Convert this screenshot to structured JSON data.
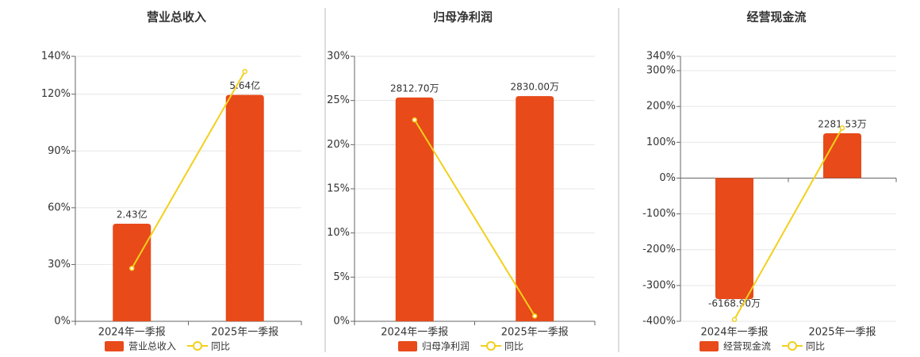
{
  "chart_data": [
    {
      "type": "bar-line",
      "title": "营业总收入",
      "categories": [
        "2024年一季报",
        "2025年一季报"
      ],
      "series": [
        {
          "name": "营业总收入",
          "color": "#e84a1a",
          "axis": "y2",
          "values": [
            2.43,
            5.64
          ],
          "value_labels": [
            "2.43亿",
            "5.64亿"
          ]
        },
        {
          "name": "同比",
          "color": "#f2d01c",
          "values": [
            28,
            132
          ]
        }
      ],
      "ylim": [
        0,
        140
      ],
      "yticks": [
        {
          "value": 0,
          "label": "0%"
        },
        {
          "value": 30,
          "label": "30%"
        },
        {
          "value": 60,
          "label": "60%"
        },
        {
          "value": 90,
          "label": "90%"
        },
        {
          "value": 120,
          "label": "120%"
        },
        {
          "value": 140,
          "label": "140%"
        }
      ],
      "y2lim": [
        0,
        6.6
      ],
      "grid": true
    },
    {
      "type": "bar-line",
      "title": "归母净利润",
      "categories": [
        "2024年一季报",
        "2025年一季报"
      ],
      "series": [
        {
          "name": "归母净利润",
          "color": "#e84a1a",
          "axis": "y2",
          "values": [
            2812.7,
            2830.0
          ],
          "value_labels": [
            "2812.70万",
            "2830.00万"
          ]
        },
        {
          "name": "同比",
          "color": "#f2d01c",
          "values": [
            22.8,
            0.6
          ]
        }
      ],
      "ylim": [
        0,
        30
      ],
      "yticks": [
        {
          "value": 0,
          "label": "0%"
        },
        {
          "value": 5,
          "label": "5%"
        },
        {
          "value": 10,
          "label": "10%"
        },
        {
          "value": 15,
          "label": "15%"
        },
        {
          "value": 20,
          "label": "20%"
        },
        {
          "value": 25,
          "label": "25%"
        },
        {
          "value": 30,
          "label": "30%"
        }
      ],
      "y2lim": [
        0,
        3330
      ],
      "grid": true
    },
    {
      "type": "bar-line",
      "title": "经营现金流",
      "categories": [
        "2024年一季报",
        "2025年一季报"
      ],
      "series": [
        {
          "name": "经营现金流",
          "color": "#e84a1a",
          "axis": "y2",
          "values": [
            -6168.9,
            2281.53
          ],
          "value_labels": [
            "-6168.90万",
            "2281.53万"
          ]
        },
        {
          "name": "同比",
          "color": "#f2d01c",
          "values": [
            -395,
            140
          ]
        }
      ],
      "ylim": [
        -400,
        340
      ],
      "yticks": [
        {
          "value": -400,
          "label": "-400%"
        },
        {
          "value": -300,
          "label": "-300%"
        },
        {
          "value": -200,
          "label": "-200%"
        },
        {
          "value": -100,
          "label": "-100%"
        },
        {
          "value": 0,
          "label": "0%"
        },
        {
          "value": 100,
          "label": "100%"
        },
        {
          "value": 200,
          "label": "200%"
        },
        {
          "value": 300,
          "label": "300%"
        },
        {
          "value": 340,
          "label": "340%"
        }
      ],
      "y2lim": [
        -7300,
        6200
      ],
      "grid": true
    }
  ]
}
